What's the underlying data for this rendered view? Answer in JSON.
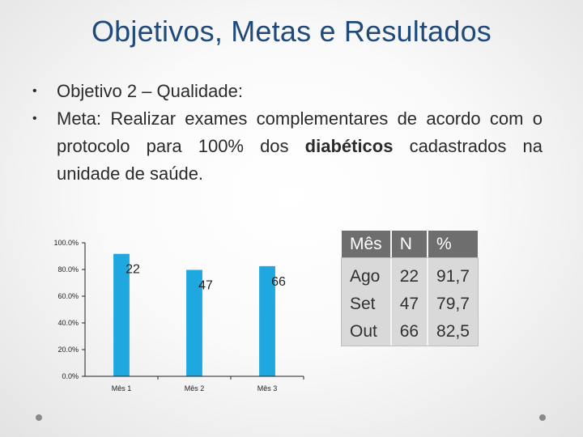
{
  "title": "Objetivos, Metas e Resultados",
  "bullets": {
    "marker": "•",
    "b1": "Objetivo 2 – Qualidade:",
    "b2_prefix": "Meta: Realizar exames complementares de acordo com o protocolo para 100% dos",
    "b2_bold": "diabéticos",
    "b2_suffix": "cadastrados na unidade de saúde."
  },
  "chart_data": {
    "type": "bar",
    "categories": [
      "Mês 1",
      "Mês 2",
      "Mês 3"
    ],
    "values": [
      91.7,
      79.7,
      82.5
    ],
    "data_labels": [
      "22",
      "47",
      "66"
    ],
    "y_ticks": [
      "0.0%",
      "20.0%",
      "40.0%",
      "60.0%",
      "80.0%",
      "100.0%"
    ],
    "ylim": [
      0,
      100
    ],
    "bar_color": "#1fa7e0",
    "grid": false
  },
  "table": {
    "headers": [
      "Mês",
      "N",
      "%"
    ],
    "rows": [
      [
        "Ago",
        "22",
        "91,7"
      ],
      [
        "Set",
        "47",
        "79,7"
      ],
      [
        "Out",
        "66",
        "82,5"
      ]
    ]
  }
}
